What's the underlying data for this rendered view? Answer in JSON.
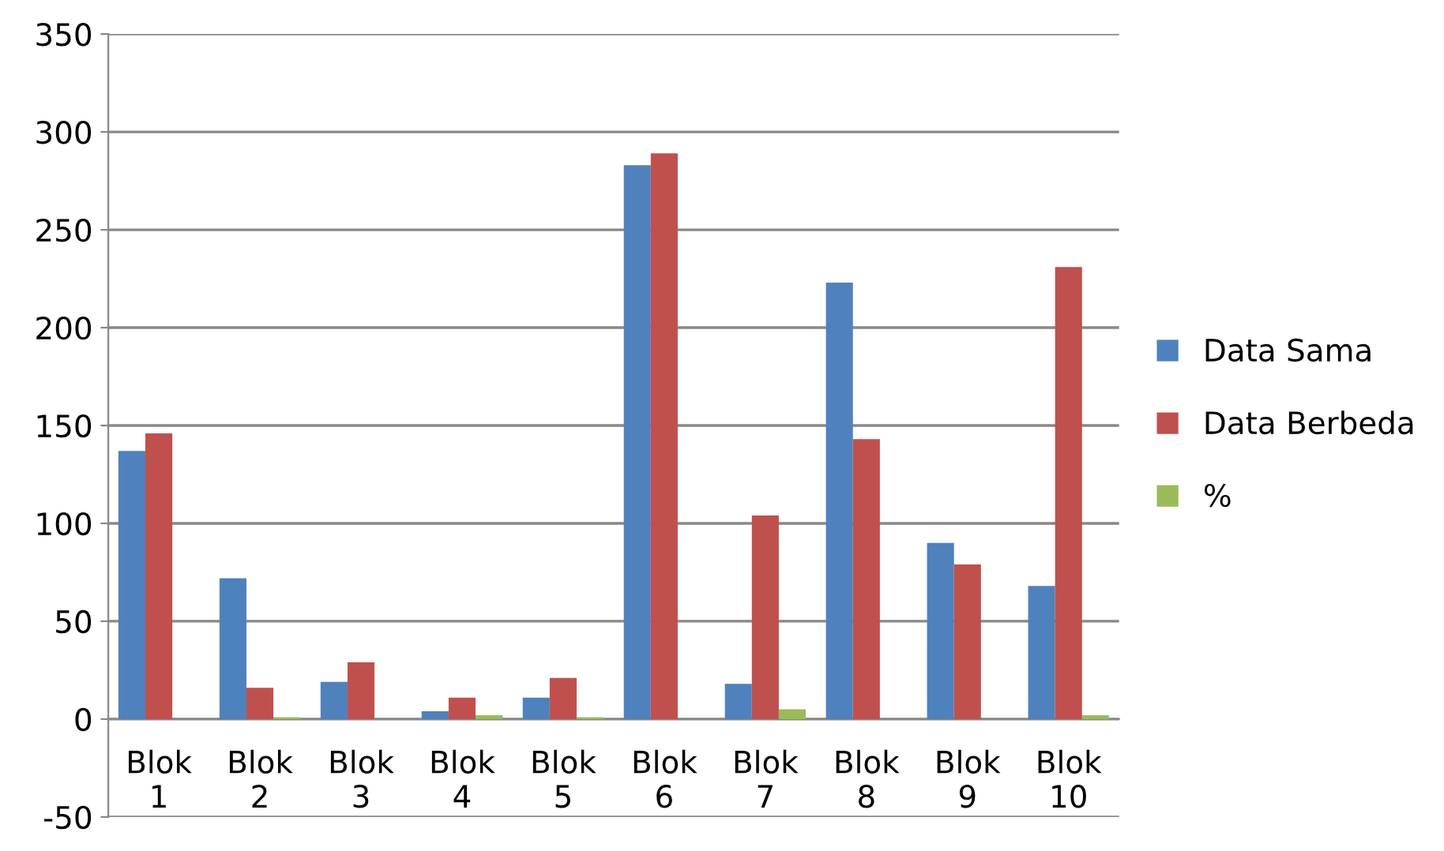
{
  "chart_data": {
    "type": "bar",
    "categories": [
      "Blok 1",
      "Blok 2",
      "Blok 3",
      "Blok 4",
      "Blok 5",
      "Blok 6",
      "Blok 7",
      "Blok 8",
      "Blok 9",
      "Blok 10"
    ],
    "series": [
      {
        "name": "Data Sama",
        "color": "#4f81bd",
        "values": [
          137,
          72,
          19,
          4,
          11,
          283,
          18,
          223,
          90,
          68
        ]
      },
      {
        "name": "Data Berbeda",
        "color": "#c0504d",
        "values": [
          146,
          16,
          29,
          11,
          21,
          289,
          104,
          143,
          79,
          231
        ]
      },
      {
        "name": "%",
        "color": "#9bbb59",
        "values": [
          0,
          1,
          0,
          2,
          1,
          0,
          5,
          0,
          0,
          2
        ]
      }
    ],
    "ylim": [
      -50,
      350
    ],
    "yticks": [
      -50,
      0,
      50,
      100,
      150,
      200,
      250,
      300,
      350
    ],
    "grid": "y",
    "legend": "right"
  }
}
